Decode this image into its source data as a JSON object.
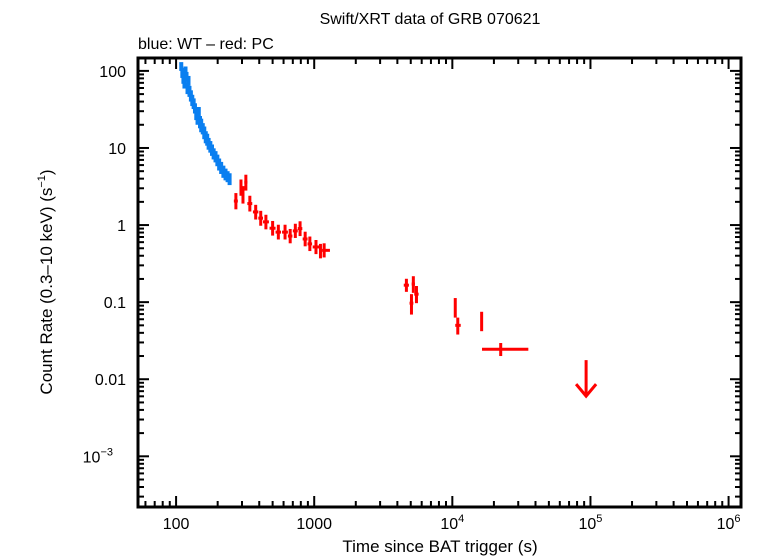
{
  "chart_data": {
    "type": "scatter",
    "title": "Swift/XRT data of GRB 070621",
    "subtitle": "blue: WT – red: PC",
    "xlabel": "Time since BAT trigger (s)",
    "ylabel": "Count Rate (0.3–10 keV) (s",
    "ylabel_sup": "−1",
    "ylabel_end": ")",
    "xscale": "log",
    "yscale": "log",
    "xlim": [
      53,
      1230000
    ],
    "ylim": [
      0.00022,
      147
    ],
    "grid": false,
    "x_ticks": [
      {
        "value": 100,
        "label": "100",
        "sup": ""
      },
      {
        "value": 1000,
        "label": "1000",
        "sup": ""
      },
      {
        "value": 10000,
        "label": "10",
        "sup": "4"
      },
      {
        "value": 100000,
        "label": "10",
        "sup": "5"
      },
      {
        "value": 1000000,
        "label": "10",
        "sup": "6"
      }
    ],
    "y_ticks": [
      {
        "value": 100,
        "label": "100",
        "sup": ""
      },
      {
        "value": 10,
        "label": "10",
        "sup": ""
      },
      {
        "value": 1,
        "label": "1",
        "sup": ""
      },
      {
        "value": 0.1,
        "label": "0.1",
        "sup": ""
      },
      {
        "value": 0.01,
        "label": "0.01",
        "sup": ""
      },
      {
        "value": 0.001,
        "label": "10",
        "sup": "−3"
      }
    ],
    "series": [
      {
        "name": "WT",
        "color": "#0a7ff0",
        "points": [
          {
            "t": 109,
            "t_lo": 107,
            "t_hi": 111,
            "rate": 115,
            "err": 15
          },
          {
            "t": 111,
            "t_lo": 109,
            "t_hi": 113,
            "rate": 95,
            "err": 14
          },
          {
            "t": 113,
            "t_lo": 111,
            "t_hi": 115,
            "rate": 80,
            "err": 12
          },
          {
            "t": 115,
            "t_lo": 113,
            "t_hi": 117,
            "rate": 70,
            "err": 11
          },
          {
            "t": 117,
            "t_lo": 115,
            "t_hi": 119,
            "rate": 100,
            "err": 14
          },
          {
            "t": 119,
            "t_lo": 117,
            "t_hi": 121,
            "rate": 85,
            "err": 12
          },
          {
            "t": 121,
            "t_lo": 119,
            "t_hi": 123,
            "rate": 60,
            "err": 10
          },
          {
            "t": 123,
            "t_lo": 121,
            "t_hi": 125,
            "rate": 75,
            "err": 11
          },
          {
            "t": 125,
            "t_lo": 123,
            "t_hi": 127,
            "rate": 55,
            "err": 9
          },
          {
            "t": 128,
            "t_lo": 126,
            "t_hi": 130,
            "rate": 48,
            "err": 8
          },
          {
            "t": 131,
            "t_lo": 129,
            "t_hi": 133,
            "rate": 42,
            "err": 7
          },
          {
            "t": 134,
            "t_lo": 132,
            "t_hi": 136,
            "rate": 38,
            "err": 6
          },
          {
            "t": 137,
            "t_lo": 135,
            "t_hi": 139,
            "rate": 33,
            "err": 5
          },
          {
            "t": 140,
            "t_lo": 138,
            "t_hi": 142,
            "rate": 28,
            "err": 5
          },
          {
            "t": 143,
            "t_lo": 141,
            "t_hi": 145,
            "rate": 24,
            "err": 4
          },
          {
            "t": 146,
            "t_lo": 144,
            "t_hi": 148,
            "rate": 29,
            "err": 5
          },
          {
            "t": 149,
            "t_lo": 147,
            "t_hi": 151,
            "rate": 22,
            "err": 4
          },
          {
            "t": 152,
            "t_lo": 150,
            "t_hi": 154,
            "rate": 20,
            "err": 4
          },
          {
            "t": 156,
            "t_lo": 154,
            "t_hi": 158,
            "rate": 18,
            "err": 3
          },
          {
            "t": 160,
            "t_lo": 158,
            "t_hi": 162,
            "rate": 16,
            "err": 3
          },
          {
            "t": 164,
            "t_lo": 162,
            "t_hi": 166,
            "rate": 14,
            "err": 2.5
          },
          {
            "t": 168,
            "t_lo": 166,
            "t_hi": 170,
            "rate": 13,
            "err": 2.3
          },
          {
            "t": 172,
            "t_lo": 170,
            "t_hi": 174,
            "rate": 11.5,
            "err": 2
          },
          {
            "t": 177,
            "t_lo": 174,
            "t_hi": 180,
            "rate": 10.5,
            "err": 1.8
          },
          {
            "t": 182,
            "t_lo": 180,
            "t_hi": 185,
            "rate": 9.5,
            "err": 1.6
          },
          {
            "t": 187,
            "t_lo": 185,
            "t_hi": 190,
            "rate": 8.5,
            "err": 1.4
          },
          {
            "t": 193,
            "t_lo": 190,
            "t_hi": 196,
            "rate": 7.8,
            "err": 1.3
          },
          {
            "t": 199,
            "t_lo": 196,
            "t_hi": 202,
            "rate": 7.0,
            "err": 1.2
          },
          {
            "t": 205,
            "t_lo": 202,
            "t_hi": 208,
            "rate": 6.2,
            "err": 1.1
          },
          {
            "t": 212,
            "t_lo": 208,
            "t_hi": 216,
            "rate": 5.6,
            "err": 1.0
          },
          {
            "t": 220,
            "t_lo": 216,
            "t_hi": 224,
            "rate": 5.0,
            "err": 0.9
          },
          {
            "t": 228,
            "t_lo": 224,
            "t_hi": 232,
            "rate": 4.6,
            "err": 0.8
          },
          {
            "t": 236,
            "t_lo": 232,
            "t_hi": 240,
            "rate": 4.3,
            "err": 0.7
          },
          {
            "t": 244,
            "t_lo": 240,
            "t_hi": 248,
            "rate": 4.0,
            "err": 0.7
          }
        ]
      },
      {
        "name": "PC",
        "color": "#ff0000",
        "points": [
          {
            "t": 271,
            "t_lo": 262,
            "t_hi": 280,
            "rate": 2.05,
            "err_lo": 0.45,
            "err_hi": 0.55
          },
          {
            "t": 295,
            "t_lo": 288,
            "t_hi": 302,
            "rate": 3.1,
            "err_lo": 0.7,
            "err_hi": 0.8
          },
          {
            "t": 305,
            "t_lo": 300,
            "t_hi": 312,
            "rate": 2.5,
            "err_lo": 0.6,
            "err_hi": 0.7
          },
          {
            "t": 320,
            "t_lo": 312,
            "t_hi": 328,
            "rate": 3.6,
            "err_lo": 0.8,
            "err_hi": 0.9
          },
          {
            "t": 342,
            "t_lo": 328,
            "t_hi": 356,
            "rate": 1.9,
            "err_lo": 0.4,
            "err_hi": 0.5
          },
          {
            "t": 377,
            "t_lo": 360,
            "t_hi": 394,
            "rate": 1.48,
            "err_lo": 0.3,
            "err_hi": 0.35
          },
          {
            "t": 410,
            "t_lo": 394,
            "t_hi": 426,
            "rate": 1.23,
            "err_lo": 0.25,
            "err_hi": 0.3
          },
          {
            "t": 447,
            "t_lo": 426,
            "t_hi": 470,
            "rate": 1.1,
            "err_lo": 0.22,
            "err_hi": 0.26
          },
          {
            "t": 500,
            "t_lo": 475,
            "t_hi": 525,
            "rate": 0.91,
            "err_lo": 0.18,
            "err_hi": 0.22
          },
          {
            "t": 550,
            "t_lo": 525,
            "t_hi": 575,
            "rate": 0.81,
            "err_lo": 0.16,
            "err_hi": 0.2
          },
          {
            "t": 615,
            "t_lo": 585,
            "t_hi": 645,
            "rate": 0.81,
            "err_lo": 0.16,
            "err_hi": 0.2
          },
          {
            "t": 670,
            "t_lo": 645,
            "t_hi": 695,
            "rate": 0.72,
            "err_lo": 0.14,
            "err_hi": 0.17
          },
          {
            "t": 730,
            "t_lo": 700,
            "t_hi": 760,
            "rate": 0.84,
            "err_lo": 0.16,
            "err_hi": 0.2
          },
          {
            "t": 790,
            "t_lo": 760,
            "t_hi": 820,
            "rate": 0.9,
            "err_lo": 0.18,
            "err_hi": 0.22
          },
          {
            "t": 860,
            "t_lo": 825,
            "t_hi": 895,
            "rate": 0.66,
            "err_lo": 0.13,
            "err_hi": 0.16
          },
          {
            "t": 930,
            "t_lo": 895,
            "t_hi": 965,
            "rate": 0.57,
            "err_lo": 0.11,
            "err_hi": 0.14
          },
          {
            "t": 1030,
            "t_lo": 975,
            "t_hi": 1085,
            "rate": 0.52,
            "err_lo": 0.1,
            "err_hi": 0.12
          },
          {
            "t": 1110,
            "t_lo": 1085,
            "t_hi": 1140,
            "rate": 0.46,
            "err_lo": 0.09,
            "err_hi": 0.11
          },
          {
            "t": 1180,
            "t_lo": 1140,
            "t_hi": 1300,
            "rate": 0.47,
            "err_lo": 0.09,
            "err_hi": 0.11
          },
          {
            "t": 4650,
            "t_lo": 4450,
            "t_hi": 4850,
            "rate": 0.166,
            "err_lo": 0.03,
            "err_hi": 0.035
          },
          {
            "t": 5220,
            "t_lo": 5080,
            "t_hi": 5360,
            "rate": 0.172,
            "err_lo": 0.04,
            "err_hi": 0.045
          },
          {
            "t": 5060,
            "t_lo": 4900,
            "t_hi": 5220,
            "rate": 0.097,
            "err_lo": 0.028,
            "err_hi": 0.03
          },
          {
            "t": 5500,
            "t_lo": 5300,
            "t_hi": 5700,
            "rate": 0.127,
            "err_lo": 0.03,
            "err_hi": 0.035
          },
          {
            "t": 10500,
            "t_lo": 10300,
            "t_hi": 10700,
            "rate": 0.086,
            "err_lo": 0.023,
            "err_hi": 0.027
          },
          {
            "t": 10950,
            "t_lo": 10500,
            "t_hi": 11500,
            "rate": 0.05,
            "err_lo": 0.012,
            "err_hi": 0.013
          },
          {
            "t": 16300,
            "t_lo": 16000,
            "t_hi": 16600,
            "rate": 0.058,
            "err_lo": 0.016,
            "err_hi": 0.017
          },
          {
            "t": 22400,
            "t_lo": 16400,
            "t_hi": 35500,
            "rate": 0.0245,
            "err_lo": 0.0045,
            "err_hi": 0.005
          }
        ],
        "upper_limits": [
          {
            "t": 93000,
            "rate": 0.0177
          }
        ]
      }
    ]
  }
}
